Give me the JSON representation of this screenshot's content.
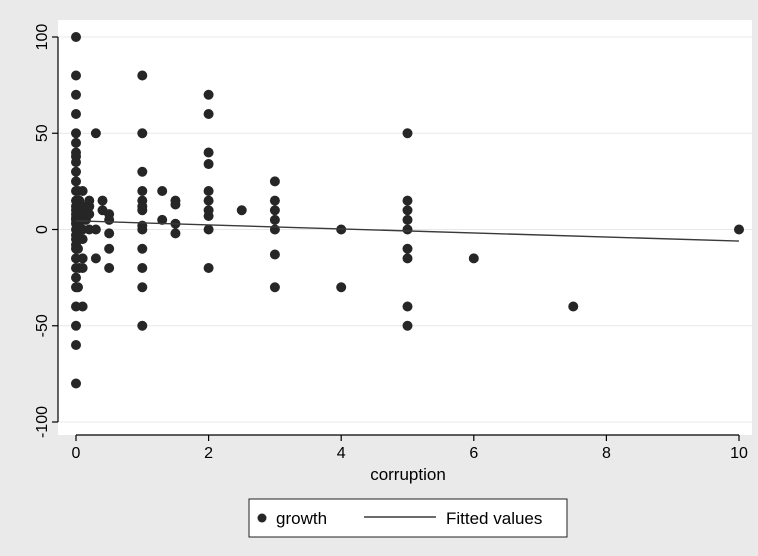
{
  "chart_data": {
    "type": "scatter",
    "title": "",
    "xlabel": "corruption",
    "ylabel": "",
    "xlim": [
      0,
      10
    ],
    "ylim": [
      -100,
      100
    ],
    "x_ticks": [
      0,
      2,
      4,
      6,
      8,
      10
    ],
    "y_ticks": [
      -100,
      -50,
      0,
      50,
      100
    ],
    "x_tick_labels": [
      "0",
      "2",
      "4",
      "6",
      "8",
      "10"
    ],
    "y_tick_labels": [
      "-100",
      "-50",
      "0",
      "50",
      "100"
    ],
    "grid": "horizontal",
    "legend_position": "bottom",
    "colors": {
      "points": "#262626",
      "fit_line": "#3a3a3a",
      "plot_background": "#ffffff",
      "figure_background": "#eaeaea",
      "grid": "#e8e8e8"
    },
    "series": [
      {
        "name": "growth",
        "kind": "scatter",
        "points": [
          [
            0,
            100
          ],
          [
            0,
            80
          ],
          [
            0,
            70
          ],
          [
            0,
            60
          ],
          [
            0,
            50
          ],
          [
            0,
            45
          ],
          [
            0,
            40
          ],
          [
            0,
            38
          ],
          [
            0,
            35
          ],
          [
            0,
            30
          ],
          [
            0,
            25
          ],
          [
            0,
            20
          ],
          [
            0,
            15
          ],
          [
            0,
            12
          ],
          [
            0,
            10
          ],
          [
            0,
            8
          ],
          [
            0,
            6
          ],
          [
            0,
            5
          ],
          [
            0,
            3
          ],
          [
            0,
            0
          ],
          [
            0,
            -3
          ],
          [
            0,
            -5
          ],
          [
            0,
            -8
          ],
          [
            0,
            -10
          ],
          [
            0,
            -15
          ],
          [
            0,
            -20
          ],
          [
            0,
            -25
          ],
          [
            0,
            -30
          ],
          [
            0,
            -40
          ],
          [
            0,
            -50
          ],
          [
            0,
            -60
          ],
          [
            0,
            -80
          ],
          [
            0.03,
            20
          ],
          [
            0.03,
            10
          ],
          [
            0.03,
            5
          ],
          [
            0.03,
            0
          ],
          [
            0.03,
            -10
          ],
          [
            0.03,
            -30
          ],
          [
            0.05,
            15
          ],
          [
            0.05,
            8
          ],
          [
            0.05,
            -5
          ],
          [
            0.05,
            -20
          ],
          [
            0.08,
            8
          ],
          [
            0.08,
            0
          ],
          [
            0.1,
            20
          ],
          [
            0.1,
            12
          ],
          [
            0.1,
            8
          ],
          [
            0.1,
            5
          ],
          [
            0.1,
            0
          ],
          [
            0.1,
            -5
          ],
          [
            0.1,
            -15
          ],
          [
            0.1,
            -20
          ],
          [
            0.1,
            -40
          ],
          [
            0.15,
            10
          ],
          [
            0.15,
            5
          ],
          [
            0.2,
            15
          ],
          [
            0.2,
            12
          ],
          [
            0.2,
            8
          ],
          [
            0.2,
            0
          ],
          [
            0.3,
            50
          ],
          [
            0.3,
            0
          ],
          [
            0.3,
            -15
          ],
          [
            0.4,
            15
          ],
          [
            0.4,
            10
          ],
          [
            0.5,
            8
          ],
          [
            0.5,
            5
          ],
          [
            0.5,
            -2
          ],
          [
            0.5,
            -10
          ],
          [
            0.5,
            -20
          ],
          [
            1,
            80
          ],
          [
            1,
            50
          ],
          [
            1,
            30
          ],
          [
            1,
            20
          ],
          [
            1,
            15
          ],
          [
            1,
            12
          ],
          [
            1,
            10
          ],
          [
            1,
            2
          ],
          [
            1,
            0
          ],
          [
            1,
            -10
          ],
          [
            1,
            -20
          ],
          [
            1,
            -30
          ],
          [
            1,
            -50
          ],
          [
            1.3,
            20
          ],
          [
            1.3,
            5
          ],
          [
            1.5,
            15
          ],
          [
            1.5,
            13
          ],
          [
            1.5,
            3
          ],
          [
            1.5,
            -2
          ],
          [
            2,
            70
          ],
          [
            2,
            60
          ],
          [
            2,
            40
          ],
          [
            2,
            34
          ],
          [
            2,
            20
          ],
          [
            2,
            15
          ],
          [
            2,
            10
          ],
          [
            2,
            7
          ],
          [
            2,
            0
          ],
          [
            2,
            -20
          ],
          [
            2.5,
            10
          ],
          [
            3,
            25
          ],
          [
            3,
            15
          ],
          [
            3,
            10
          ],
          [
            3,
            5
          ],
          [
            3,
            0
          ],
          [
            3,
            -13
          ],
          [
            3,
            -30
          ],
          [
            4,
            0
          ],
          [
            4,
            -30
          ],
          [
            5,
            50
          ],
          [
            5,
            15
          ],
          [
            5,
            10
          ],
          [
            5,
            5
          ],
          [
            5,
            0
          ],
          [
            5,
            -10
          ],
          [
            5,
            -15
          ],
          [
            5,
            -40
          ],
          [
            5,
            -50
          ],
          [
            6,
            -15
          ],
          [
            7.5,
            -40
          ],
          [
            10,
            0
          ]
        ]
      },
      {
        "name": "Fitted values",
        "kind": "line",
        "points": [
          [
            0,
            4.5
          ],
          [
            10,
            -6
          ]
        ]
      }
    ]
  },
  "legend": {
    "items": [
      {
        "label": "growth",
        "kind": "marker"
      },
      {
        "label": "Fitted values",
        "kind": "line"
      }
    ]
  }
}
